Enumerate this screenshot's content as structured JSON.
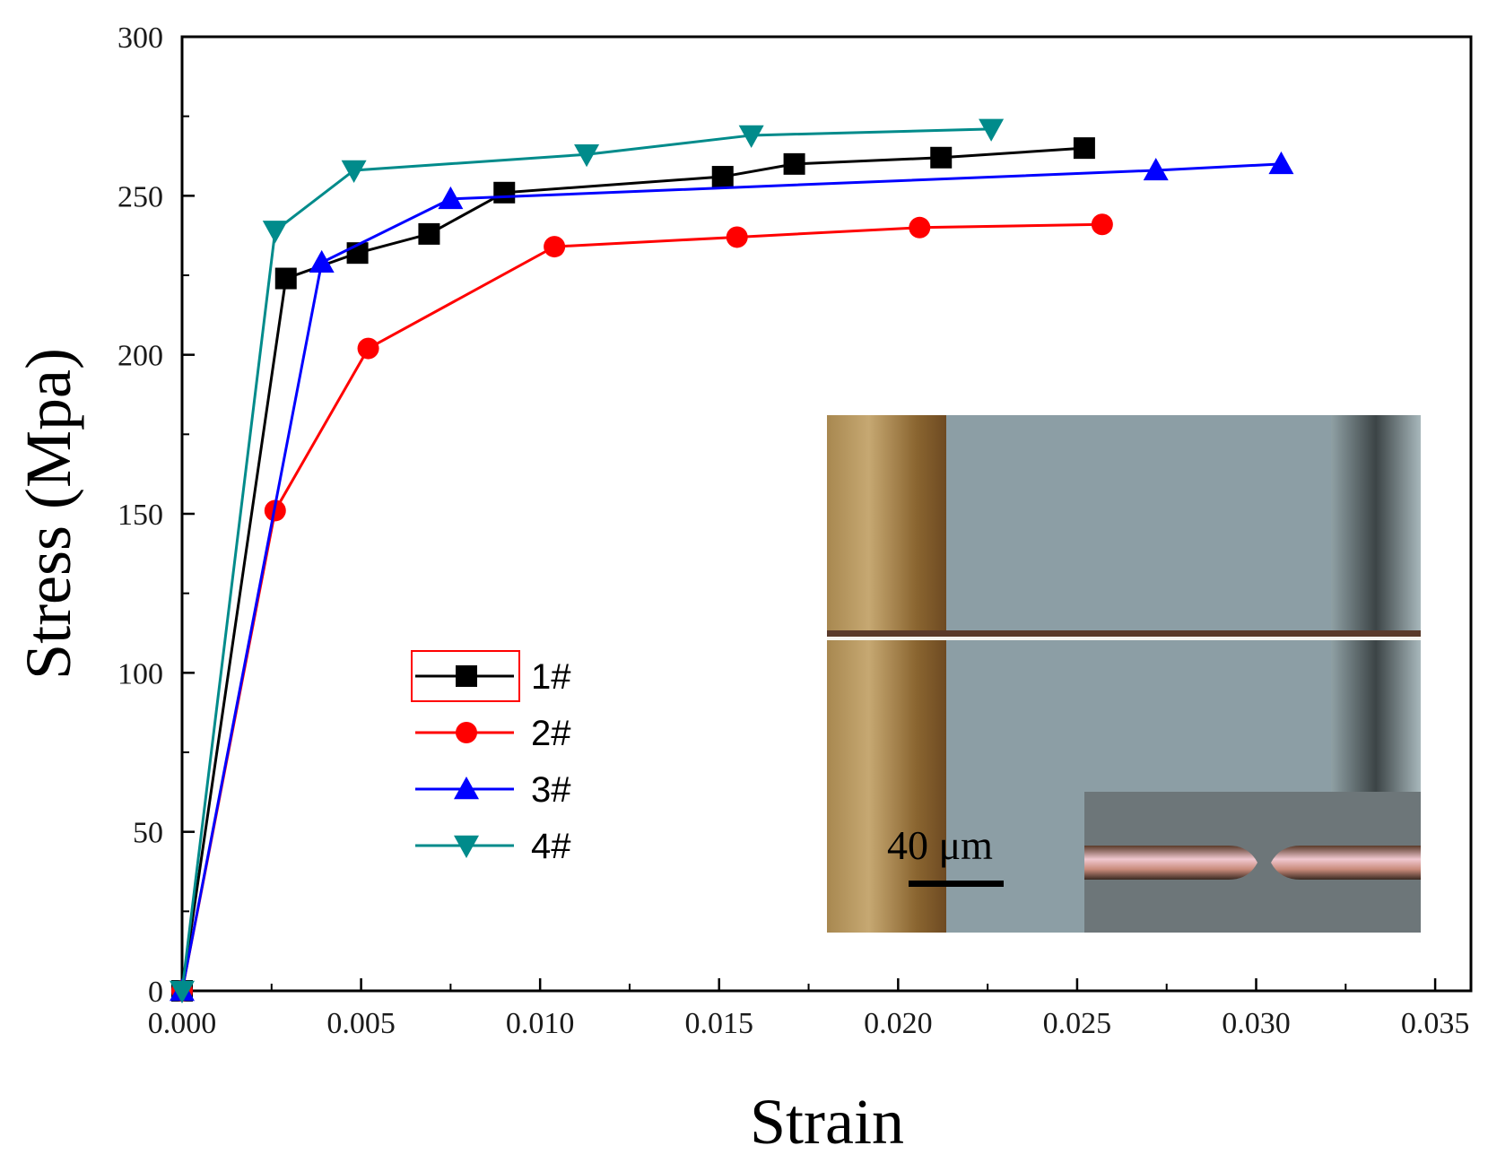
{
  "chart_data": {
    "type": "line",
    "xlabel": "Strain",
    "ylabel": "Stress (Mpa)",
    "xlim": [
      0,
      0.036
    ],
    "ylim": [
      0,
      300
    ],
    "xticks": [
      0.0,
      0.005,
      0.01,
      0.015,
      0.02,
      0.025,
      0.03,
      0.035
    ],
    "xtick_labels": [
      "0.000",
      "0.005",
      "0.010",
      "0.015",
      "0.020",
      "0.025",
      "0.030",
      "0.035"
    ],
    "yticks": [
      0,
      50,
      100,
      150,
      200,
      250,
      300
    ],
    "ytick_labels": [
      "0",
      "50",
      "100",
      "150",
      "200",
      "250",
      "300"
    ],
    "legend_position": "center-left",
    "series": [
      {
        "name": "1#",
        "color": "#000000",
        "marker": "square",
        "x": [
          0.0,
          0.0029,
          0.0049,
          0.0069,
          0.009,
          0.0151,
          0.0171,
          0.0212,
          0.0252
        ],
        "y": [
          0,
          224,
          232,
          238,
          251,
          256,
          260,
          262,
          265
        ]
      },
      {
        "name": "2#",
        "color": "#ff0000",
        "marker": "circle",
        "x": [
          0.0,
          0.0026,
          0.0052,
          0.0104,
          0.0155,
          0.0206,
          0.0257
        ],
        "y": [
          0,
          151,
          202,
          234,
          237,
          240,
          241
        ]
      },
      {
        "name": "3#",
        "color": "#0000ff",
        "marker": "triangle-up",
        "x": [
          0.0,
          0.0039,
          0.0075,
          0.0272,
          0.0307
        ],
        "y": [
          0,
          229,
          249,
          258,
          260
        ]
      },
      {
        "name": "4#",
        "color": "#008b8b",
        "marker": "triangle-down",
        "x": [
          0.0,
          0.0026,
          0.0048,
          0.0113,
          0.0159,
          0.0226
        ],
        "y": [
          0,
          239,
          258,
          263,
          269,
          271
        ]
      }
    ]
  },
  "inset": {
    "scale_bar_label": "40 μm"
  }
}
